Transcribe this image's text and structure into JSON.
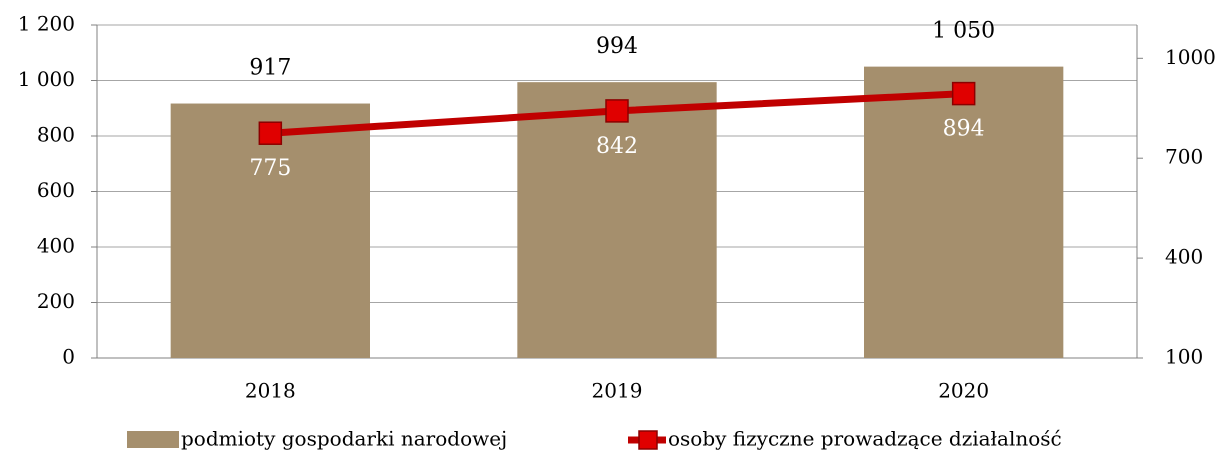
{
  "chart_data": {
    "type": "combo",
    "categories": [
      "2018",
      "2019",
      "2020"
    ],
    "series": [
      {
        "name": "podmioty gospodarki narodowej",
        "type": "bar",
        "color": "#a58f6d",
        "values": [
          917,
          994,
          1050
        ],
        "value_labels": [
          "917",
          "994",
          "1 050"
        ]
      },
      {
        "name": "osoby fizyczne prowadzące działalność",
        "type": "line",
        "axis": "y2",
        "color": "#c00000",
        "marker_color": "#e00000",
        "values": [
          775,
          842,
          894
        ]
      }
    ],
    "ylim": [
      0,
      1200
    ],
    "yticks": [
      0,
      200,
      400,
      600,
      800,
      {
        "value": 1000,
        "label": "1 000"
      },
      {
        "value": 1200,
        "label": "1 200"
      }
    ],
    "y2lim": [
      100,
      1100
    ],
    "y2ticks": [
      100,
      400,
      700,
      1000
    ],
    "grid": true,
    "legend": "bottom"
  }
}
